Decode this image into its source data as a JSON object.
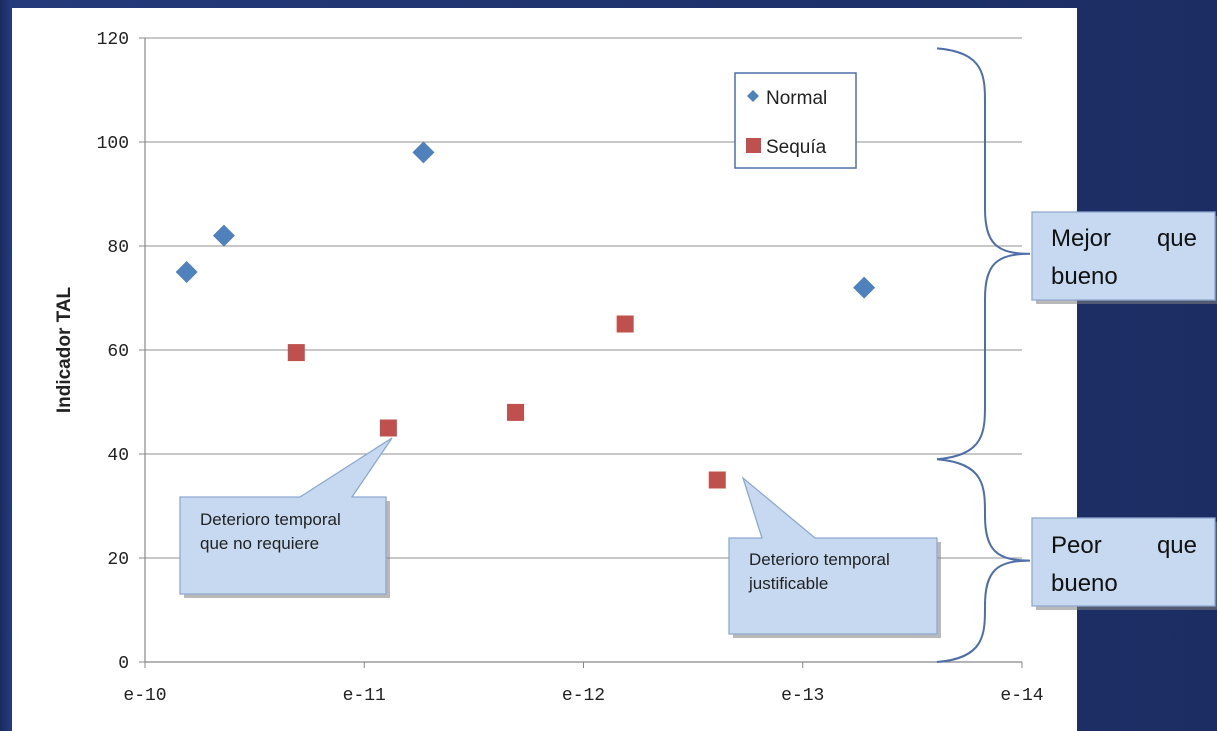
{
  "chart_data": {
    "type": "scatter",
    "ylabel": "Indicador TAL",
    "xlabel": "",
    "ylim": [
      0,
      120
    ],
    "yticks": [
      0,
      20,
      40,
      60,
      80,
      100,
      120
    ],
    "xticks": [
      "e-10",
      "e-11",
      "e-12",
      "e-13",
      "e-14"
    ],
    "xlim": [
      0,
      4
    ],
    "grid": true,
    "legend_position": "top-right",
    "series": [
      {
        "name": "Normal",
        "marker": "diamond",
        "color": "#4f81bd",
        "points": [
          {
            "x": 0.19,
            "y": 75
          },
          {
            "x": 0.36,
            "y": 82
          },
          {
            "x": 1.27,
            "y": 98
          },
          {
            "x": 3.28,
            "y": 72
          }
        ]
      },
      {
        "name": "Sequía",
        "marker": "square",
        "color": "#c0504d",
        "points": [
          {
            "x": 0.69,
            "y": 59.5
          },
          {
            "x": 1.11,
            "y": 45
          },
          {
            "x": 1.69,
            "y": 48
          },
          {
            "x": 2.19,
            "y": 65
          },
          {
            "x": 2.61,
            "y": 35
          }
        ]
      }
    ]
  },
  "callouts": {
    "left": "Deterioro temporal que no requiere",
    "middle": "Deterioro temporal justificable",
    "better_line1": "Mejor que",
    "better_line2": "bueno",
    "worse_line1": "Peor que",
    "worse_line2": "bueno"
  },
  "colors": {
    "callout_fill": "#c6d9f1",
    "callout_border": "#8ea9cf",
    "brace": "#4f6fa8",
    "grid": "#a6a6a6"
  }
}
